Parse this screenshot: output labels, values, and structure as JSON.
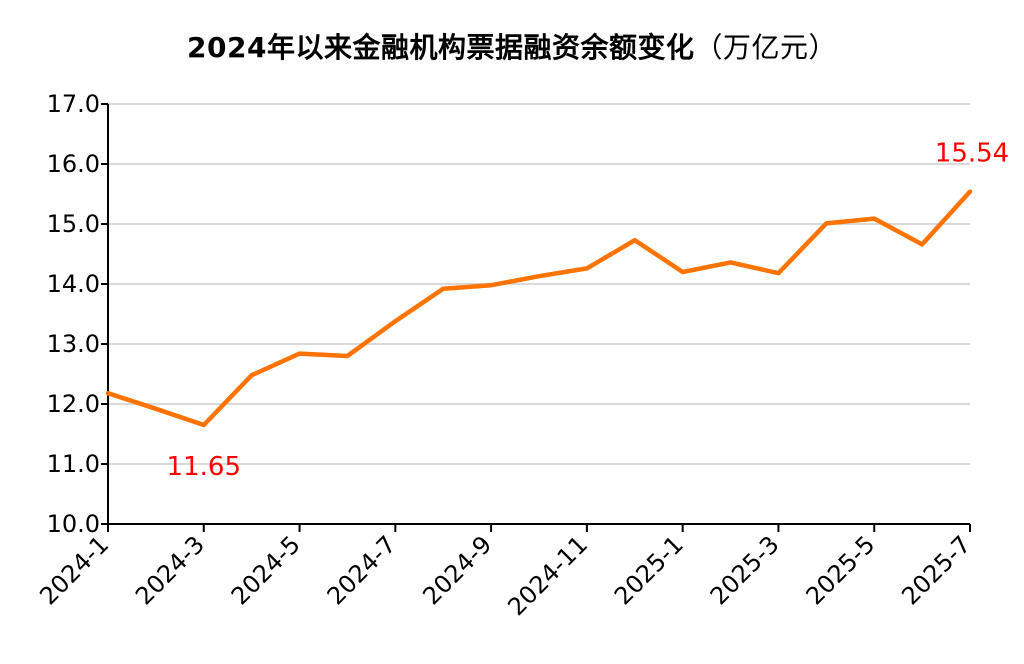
{
  "chart_data": {
    "type": "line",
    "title": "2024年以来金融机构票据融资余额变化",
    "unit": "（万亿元）",
    "xlabel": "",
    "ylabel": "",
    "ylim": [
      10.0,
      17.0
    ],
    "yticks": [
      "10.0",
      "11.0",
      "12.0",
      "13.0",
      "14.0",
      "15.0",
      "16.0",
      "17.0"
    ],
    "grid": true,
    "x": [
      "2024-1",
      "2024-2",
      "2024-3",
      "2024-4",
      "2024-5",
      "2024-6",
      "2024-7",
      "2024-8",
      "2024-9",
      "2024-10",
      "2024-11",
      "2024-12",
      "2025-1",
      "2025-2",
      "2025-3",
      "2025-4",
      "2025-5",
      "2025-6",
      "2025-7"
    ],
    "xticks": [
      "2024-1",
      "2024-3",
      "2024-5",
      "2024-7",
      "2024-9",
      "2024-11",
      "2025-1",
      "2025-3",
      "2025-5",
      "2025-7"
    ],
    "series": [
      {
        "values": [
          12.18,
          11.92,
          11.65,
          12.48,
          12.84,
          12.8,
          13.38,
          13.92,
          13.98,
          14.13,
          14.26,
          14.73,
          14.2,
          14.36,
          14.18,
          15.01,
          15.09,
          14.66,
          15.54
        ],
        "color": "#ff7300"
      }
    ],
    "annotations": [
      {
        "text": "11.65",
        "x": "2024-3",
        "y": 11.65,
        "color": "#ff0000"
      },
      {
        "text": "15.54",
        "x": "2025-7",
        "y": 15.54,
        "color": "#ff0000"
      }
    ]
  }
}
